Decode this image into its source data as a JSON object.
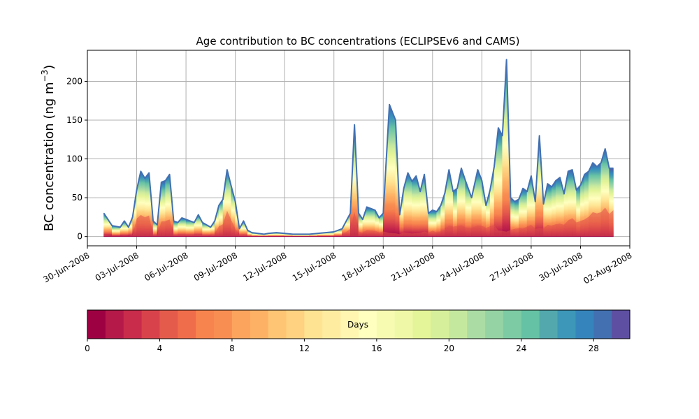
{
  "chart_data": {
    "type": "area",
    "title": "Age contribution to BC concentrations (ECLIPSEv6 and CAMS)",
    "ylabel": "BC concentration (ng m",
    "ylabel_superscript": "−3",
    "ylabel_close": ")",
    "xlabel": "",
    "x_ticks": [
      "30-Jun-2008",
      "03-Jul-2008",
      "06-Jul-2008",
      "09-Jul-2008",
      "12-Jul-2008",
      "15-Jul-2008",
      "18-Jul-2008",
      "21-Jul-2008",
      "24-Jul-2008",
      "27-Jul-2008",
      "30-Jul-2008",
      "02-Aug-2008"
    ],
    "y_ticks": [
      "0",
      "50",
      "100",
      "150",
      "200"
    ],
    "ylim": [
      -12,
      240
    ],
    "xlim": [
      "2008-06-30",
      "2008-08-02"
    ],
    "grid": true,
    "stacked_by": "age (days since emission)",
    "time_series": {
      "date": [
        "2008-07-01",
        "2008-07-01",
        "2008-07-02",
        "2008-07-02",
        "2008-07-02",
        "2008-07-02",
        "2008-07-03",
        "2008-07-03",
        "2008-07-03",
        "2008-07-03",
        "2008-07-04",
        "2008-07-04",
        "2008-07-04",
        "2008-07-04",
        "2008-07-05",
        "2008-07-05",
        "2008-07-05",
        "2008-07-05",
        "2008-07-06",
        "2008-07-06",
        "2008-07-06",
        "2008-07-07",
        "2008-07-07",
        "2008-07-07",
        "2008-07-08",
        "2008-07-08",
        "2008-07-08",
        "2008-07-08",
        "2008-07-09",
        "2008-07-09",
        "2008-07-09",
        "2008-07-09",
        "2008-07-10",
        "2008-07-10",
        "2008-07-10",
        "2008-07-11",
        "2008-07-11",
        "2008-07-12",
        "2008-07-12",
        "2008-07-13",
        "2008-07-14",
        "2008-07-15",
        "2008-07-15",
        "2008-07-16",
        "2008-07-16",
        "2008-07-16",
        "2008-07-16",
        "2008-07-17",
        "2008-07-17",
        "2008-07-17",
        "2008-07-18",
        "2008-07-18",
        "2008-07-18",
        "2008-07-19",
        "2008-07-19",
        "2008-07-19",
        "2008-07-19",
        "2008-07-20",
        "2008-07-20",
        "2008-07-20",
        "2008-07-20",
        "2008-07-21",
        "2008-07-21",
        "2008-07-21",
        "2008-07-21",
        "2008-07-22",
        "2008-07-22",
        "2008-07-22",
        "2008-07-22",
        "2008-07-23",
        "2008-07-23",
        "2008-07-23",
        "2008-07-24",
        "2008-07-24",
        "2008-07-24",
        "2008-07-24",
        "2008-07-25",
        "2008-07-25",
        "2008-07-25",
        "2008-07-25",
        "2008-07-26",
        "2008-07-26",
        "2008-07-26",
        "2008-07-26",
        "2008-07-27",
        "2008-07-27",
        "2008-07-27",
        "2008-07-27",
        "2008-07-28",
        "2008-07-28",
        "2008-07-28",
        "2008-07-28",
        "2008-07-29",
        "2008-07-29",
        "2008-07-29",
        "2008-07-29",
        "2008-07-30",
        "2008-07-30",
        "2008-07-30",
        "2008-07-30",
        "2008-07-31",
        "2008-07-31",
        "2008-07-31",
        "2008-07-31",
        "2008-08-01"
      ],
      "hour": [
        0,
        12,
        0,
        6,
        12,
        18,
        0,
        6,
        12,
        18,
        0,
        6,
        12,
        18,
        0,
        6,
        12,
        18,
        0,
        12,
        18,
        0,
        12,
        18,
        0,
        6,
        12,
        18,
        0,
        6,
        12,
        18,
        0,
        9,
        18,
        0,
        12,
        0,
        12,
        12,
        0,
        0,
        12,
        0,
        6,
        12,
        18,
        0,
        12,
        18,
        0,
        9,
        18,
        0,
        6,
        12,
        18,
        0,
        6,
        12,
        18,
        0,
        6,
        12,
        18,
        0,
        6,
        12,
        18,
        0,
        9,
        18,
        0,
        6,
        12,
        18,
        0,
        6,
        12,
        18,
        0,
        6,
        12,
        18,
        0,
        6,
        12,
        18,
        0,
        6,
        12,
        18,
        0,
        6,
        12,
        18,
        0,
        6,
        12,
        18,
        0,
        6,
        12,
        18,
        0
      ],
      "total": [
        30,
        14,
        12,
        20,
        12,
        25,
        60,
        84,
        75,
        82,
        20,
        15,
        70,
        72,
        80,
        20,
        18,
        24,
        22,
        18,
        28,
        18,
        12,
        20,
        40,
        48,
        86,
        65,
        45,
        10,
        20,
        8,
        5,
        4,
        3,
        4,
        5,
        4,
        3,
        3,
        4,
        6,
        10,
        30,
        144,
        30,
        22,
        38,
        34,
        24,
        30,
        170,
        150,
        28,
        62,
        82,
        71,
        78,
        58,
        80,
        30,
        34,
        32,
        40,
        56,
        86,
        58,
        62,
        88,
        72,
        50,
        86,
        72,
        40,
        60,
        90,
        140,
        130,
        228,
        50,
        45,
        48,
        62,
        58,
        78,
        45,
        130,
        42,
        68,
        64,
        72,
        76,
        55,
        84,
        86,
        60,
        66,
        80,
        84,
        95,
        90,
        95,
        113,
        88,
        88
      ],
      "young_share": [
        0.1,
        0.1,
        0.1,
        0.1,
        0.1,
        0.1,
        0.7,
        0.6,
        0.6,
        0.6,
        0.2,
        0.2,
        0.5,
        0.5,
        0.5,
        0.2,
        0.15,
        0.15,
        0.15,
        0.15,
        0.15,
        0.2,
        0.2,
        0.3,
        0.6,
        0.6,
        0.7,
        0.6,
        0.4,
        0.3,
        0.3,
        0.2,
        0.3,
        0.4,
        0.4,
        0.4,
        0.4,
        0.4,
        0.3,
        0.3,
        0.4,
        0.4,
        0.4,
        0.6,
        0.4,
        0.4,
        0.4,
        0.4,
        0.4,
        0.4,
        0.4,
        0.05,
        0.05,
        0.2,
        0.15,
        0.1,
        0.1,
        0.1,
        0.15,
        0.15,
        0.3,
        0.4,
        0.3,
        0.3,
        0.3,
        0.3,
        0.4,
        0.4,
        0.3,
        0.3,
        0.4,
        0.3,
        0.35,
        0.5,
        0.4,
        0.3,
        0.1,
        0.1,
        0.05,
        0.3,
        0.4,
        0.4,
        0.3,
        0.4,
        0.35,
        0.4,
        0.15,
        0.45,
        0.4,
        0.4,
        0.4,
        0.4,
        0.5,
        0.45,
        0.5,
        0.55,
        0.55,
        0.5,
        0.55,
        0.6,
        0.6,
        0.6,
        0.6,
        0.6,
        0.7
      ]
    },
    "colorbar": {
      "label": "Days",
      "ticks": [
        "0",
        "4",
        "8",
        "12",
        "16",
        "20",
        "24",
        "28"
      ],
      "range": [
        0,
        30
      ],
      "bins": 30,
      "colormap": "Spectral",
      "colors": [
        "#9e0142",
        "#b4194a",
        "#c92b4b",
        "#d8434b",
        "#e55b4b",
        "#f06d4b",
        "#f7844e",
        "#f98e52",
        "#fca45e",
        "#fdb165",
        "#fdc574",
        "#fed281",
        "#fee392",
        "#feeda1",
        "#fff6b1",
        "#ffffbf",
        "#f7fbb2",
        "#eff8a6",
        "#e4f498",
        "#d6ef9b",
        "#c5e89f",
        "#aadca4",
        "#95d3a4",
        "#7ccba5",
        "#66c2a5",
        "#52a8ad",
        "#3d97b8",
        "#3585bc",
        "#4270b1",
        "#5e4fa2"
      ]
    }
  }
}
